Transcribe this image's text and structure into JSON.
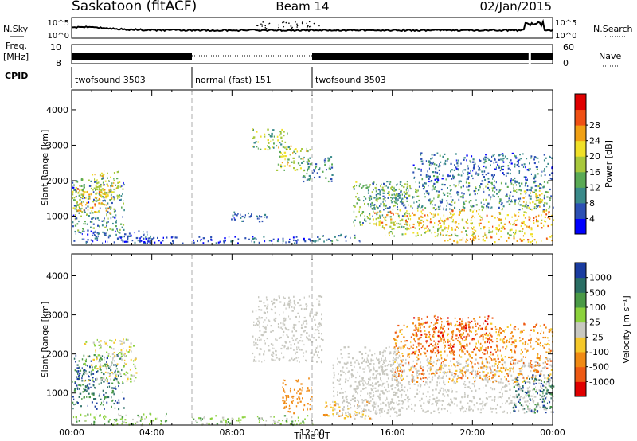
{
  "header": {
    "station": "Saskatoon (fitACF)",
    "beam": "Beam 14",
    "date": "02/Jan/2015"
  },
  "noise_panel": {
    "left_label": "N.Sky",
    "right_label": "N.Search",
    "left_ticks": [
      "10^5",
      "10^0"
    ],
    "right_ticks": [
      "10^5",
      "10^0"
    ],
    "series": [
      {
        "name": "N.Sky",
        "style": "solid"
      },
      {
        "name": "N.Search",
        "style": "dotted"
      }
    ]
  },
  "freq_panel": {
    "left_label_1": "Freq.",
    "left_label_2": "[MHz]",
    "right_label": "Nave",
    "left_ticks": [
      "10",
      "8"
    ],
    "right_ticks": [
      "60",
      "0"
    ],
    "series": [
      {
        "name": "Freq.",
        "style": "solid"
      },
      {
        "name": "Nave",
        "style": "dotted"
      }
    ]
  },
  "cpid_panel": {
    "label": "CPID",
    "segments": [
      {
        "label": "twofsound 3503",
        "start_hour": 0,
        "end_hour": 6
      },
      {
        "label": "normal (fast) 151",
        "start_hour": 6,
        "end_hour": 12
      },
      {
        "label": "twofsound 3503",
        "start_hour": 12,
        "end_hour": 24
      }
    ]
  },
  "chart_data": [
    {
      "type": "heatmap",
      "quantity": "Power",
      "ylabel": "Slant Range [km]",
      "ylim": [
        180,
        4560
      ],
      "yticks": [
        1000,
        2000,
        3000,
        4000
      ],
      "x_hours_range": [
        0,
        24
      ],
      "colorbar": {
        "label": "Power [dB]",
        "ticks": [
          "4",
          "8",
          "12",
          "16",
          "20",
          "24",
          "28"
        ],
        "tick_values": [
          4,
          8,
          12,
          16,
          20,
          24,
          28
        ],
        "range": [
          0,
          32
        ],
        "colors": [
          "#0000ff",
          "#2c50b4",
          "#3a8a8a",
          "#5aaa55",
          "#a8c83c",
          "#f0e028",
          "#f0a014",
          "#f05014",
          "#e00000"
        ]
      },
      "scatter_regions": [
        {
          "t_start": 0.0,
          "t_end": 2.6,
          "r_low": 500,
          "r_high": 2100,
          "level": 11,
          "spread": 8
        },
        {
          "t_start": 0.2,
          "t_end": 2.0,
          "r_low": 1100,
          "r_high": 1900,
          "level": 24,
          "spread": 5
        },
        {
          "t_start": 0.0,
          "t_end": 0.6,
          "r_low": 1200,
          "r_high": 1900,
          "level": 18,
          "spread": 6
        },
        {
          "t_start": 1.0,
          "t_end": 2.4,
          "r_low": 1500,
          "r_high": 2300,
          "level": 20,
          "spread": 5
        },
        {
          "t_start": 0.0,
          "t_end": 4.0,
          "r_low": 250,
          "r_high": 600,
          "level": 6,
          "spread": 4
        },
        {
          "t_start": 2.8,
          "t_end": 5.5,
          "r_low": 250,
          "r_high": 450,
          "level": 5,
          "spread": 3
        },
        {
          "t_start": 6.0,
          "t_end": 12.0,
          "r_low": 250,
          "r_high": 450,
          "level": 6,
          "spread": 4
        },
        {
          "t_start": 7.8,
          "t_end": 9.8,
          "r_low": 850,
          "r_high": 1150,
          "level": 7,
          "spread": 4
        },
        {
          "t_start": 9.0,
          "t_end": 10.8,
          "r_low": 2900,
          "r_high": 3500,
          "level": 16,
          "spread": 8
        },
        {
          "t_start": 10.2,
          "t_end": 11.9,
          "r_low": 2300,
          "r_high": 3000,
          "level": 18,
          "spread": 8
        },
        {
          "t_start": 11.5,
          "t_end": 13.0,
          "r_low": 2000,
          "r_high": 2700,
          "level": 10,
          "spread": 6
        },
        {
          "t_start": 12.0,
          "t_end": 14.5,
          "r_low": 300,
          "r_high": 500,
          "level": 9,
          "spread": 4
        },
        {
          "t_start": 14.0,
          "t_end": 16.8,
          "r_low": 700,
          "r_high": 2000,
          "level": 14,
          "spread": 7
        },
        {
          "t_start": 14.8,
          "t_end": 24.0,
          "r_low": 1200,
          "r_high": 2000,
          "level": 11,
          "spread": 7
        },
        {
          "t_start": 15.0,
          "t_end": 24.0,
          "r_low": 650,
          "r_high": 1200,
          "level": 24,
          "spread": 6
        },
        {
          "t_start": 15.5,
          "t_end": 23.0,
          "r_low": 450,
          "r_high": 700,
          "level": 19,
          "spread": 6
        },
        {
          "t_start": 18.5,
          "t_end": 24.0,
          "r_low": 280,
          "r_high": 480,
          "level": 25,
          "spread": 4
        },
        {
          "t_start": 17.0,
          "t_end": 24.0,
          "r_low": 2000,
          "r_high": 2800,
          "level": 8,
          "spread": 5
        },
        {
          "t_start": 22.5,
          "t_end": 23.5,
          "r_low": 1200,
          "r_high": 1800,
          "level": 20,
          "spread": 5
        }
      ]
    },
    {
      "type": "heatmap",
      "quantity": "Velocity",
      "ylabel": "Slant Range [km]",
      "xlabel": "Time UT",
      "ylim": [
        180,
        4560
      ],
      "yticks": [
        1000,
        2000,
        3000,
        4000
      ],
      "xticks": [
        "00:00",
        "04:00",
        "08:00",
        "12:00",
        "16:00",
        "20:00",
        "00:00"
      ],
      "x_hours_range": [
        0,
        24
      ],
      "colorbar": {
        "label": "Velocity [m s⁻¹]",
        "ticks": [
          "1000",
          "500",
          "100",
          "25",
          "-25",
          "-100",
          "-500",
          "-1000"
        ],
        "colors": [
          "#1a3ca0",
          "#2a6e64",
          "#4a9a46",
          "#8cd23c",
          "#c8c8c0",
          "#f5c82a",
          "#f08a14",
          "#ee5a14",
          "#e00000"
        ]
      },
      "scatter_regions": [
        {
          "t_start": 0.0,
          "t_end": 2.6,
          "r_low": 600,
          "r_high": 2000,
          "vbin": 1,
          "spread": 3
        },
        {
          "t_start": 0.2,
          "t_end": 1.2,
          "r_low": 1100,
          "r_high": 1800,
          "vbin": 0,
          "spread": 2
        },
        {
          "t_start": 0.6,
          "t_end": 3.2,
          "r_low": 1300,
          "r_high": 2400,
          "vbin": 4,
          "spread": 2
        },
        {
          "t_start": 0.0,
          "t_end": 5.0,
          "r_low": 200,
          "r_high": 500,
          "vbin": 3,
          "spread": 2
        },
        {
          "t_start": 6.0,
          "t_end": 12.0,
          "r_low": 200,
          "r_high": 450,
          "vbin": 3,
          "spread": 2
        },
        {
          "t_start": 9.0,
          "t_end": 12.5,
          "r_low": 1800,
          "r_high": 3500,
          "vbin": 4,
          "spread": 1
        },
        {
          "t_start": 10.5,
          "t_end": 12.0,
          "r_low": 500,
          "r_high": 1400,
          "vbin": 6,
          "spread": 1
        },
        {
          "t_start": 12.5,
          "t_end": 15.0,
          "r_low": 350,
          "r_high": 800,
          "vbin": 5,
          "spread": 2
        },
        {
          "t_start": 13.0,
          "t_end": 16.5,
          "r_low": 400,
          "r_high": 2200,
          "vbin": 4,
          "spread": 1
        },
        {
          "t_start": 14.5,
          "t_end": 24.0,
          "r_low": 500,
          "r_high": 1900,
          "vbin": 4,
          "spread": 1
        },
        {
          "t_start": 16.0,
          "t_end": 24.0,
          "r_low": 1300,
          "r_high": 2800,
          "vbin": 6,
          "spread": 2
        },
        {
          "t_start": 17.0,
          "t_end": 21.0,
          "r_low": 2000,
          "r_high": 3000,
          "vbin": 7,
          "spread": 2
        },
        {
          "t_start": 22.0,
          "t_end": 24.0,
          "r_low": 500,
          "r_high": 1500,
          "vbin": 1,
          "spread": 2
        }
      ]
    }
  ]
}
